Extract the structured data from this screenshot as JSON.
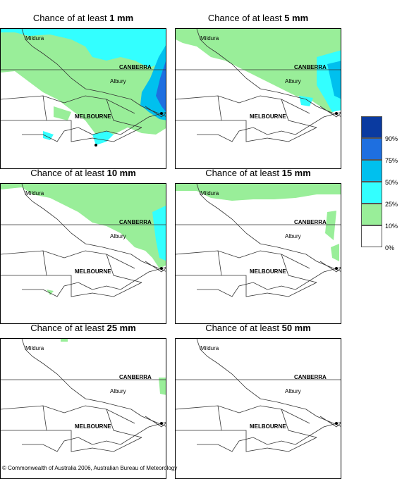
{
  "panels": [
    {
      "title_prefix": "Chance of at least ",
      "threshold": "1 mm"
    },
    {
      "title_prefix": "Chance of at least ",
      "threshold": "5 mm"
    },
    {
      "title_prefix": "Chance of at least ",
      "threshold": "10 mm"
    },
    {
      "title_prefix": "Chance of at least ",
      "threshold": "15 mm"
    },
    {
      "title_prefix": "Chance of at least ",
      "threshold": "25 mm"
    },
    {
      "title_prefix": "Chance of at least ",
      "threshold": "50 mm"
    }
  ],
  "places": {
    "mildura": "Mildura",
    "canberra": "CANBERRA",
    "albury": "Albury",
    "melbourne": "MELBOURNE"
  },
  "legend": {
    "labels": [
      "90%",
      "75%",
      "50%",
      "25%",
      "10%",
      "0%"
    ],
    "colors": [
      "#0a3aa0",
      "#1e6fe0",
      "#00c0ee",
      "#33ffff",
      "#99ee99",
      "#ffffff"
    ]
  },
  "copyright": "© Commonwealth of Australia 2006, Australian Bureau of Meteorology"
}
